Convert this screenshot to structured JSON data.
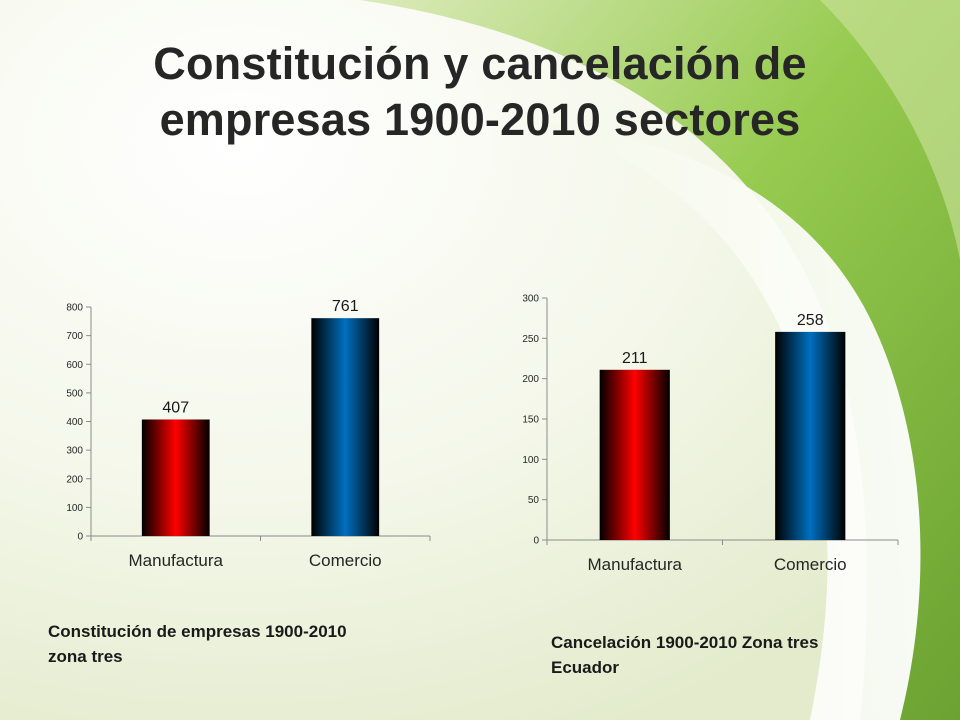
{
  "page": {
    "title_line1": "Constitución y cancelación de",
    "title_line2": "empresas 1900-2010 sectores"
  },
  "captions": [
    "Constitución de empresas 1900-2010 zona tres",
    "Cancelación 1900-2010 Zona tres Ecuador"
  ],
  "colors": {
    "background": "#f3f6e6",
    "swoosh": "#8cc63f",
    "manufactura_bar": "#ff0000",
    "comercio_bar": "#0070c0"
  },
  "chart_data": [
    {
      "type": "bar",
      "categories": [
        "Manufactura",
        "Comercio"
      ],
      "values": [
        407,
        761
      ],
      "data_labels": [
        "407",
        "761"
      ],
      "ylim": [
        0,
        800
      ],
      "yticks": [
        0,
        100,
        200,
        300,
        400,
        500,
        600,
        700,
        800
      ],
      "grid": false,
      "legend": "none",
      "bar_colors": [
        "#ff0000",
        "#0070c0"
      ],
      "title": "",
      "xlabel": "",
      "ylabel": ""
    },
    {
      "type": "bar",
      "categories": [
        "Manufactura",
        "Comercio"
      ],
      "values": [
        211,
        258
      ],
      "data_labels": [
        "211",
        "258"
      ],
      "ylim": [
        0,
        300
      ],
      "yticks": [
        0,
        50,
        100,
        150,
        200,
        250,
        300
      ],
      "grid": false,
      "legend": "none",
      "bar_colors": [
        "#ff0000",
        "#0070c0"
      ],
      "title": "",
      "xlabel": "",
      "ylabel": ""
    }
  ]
}
